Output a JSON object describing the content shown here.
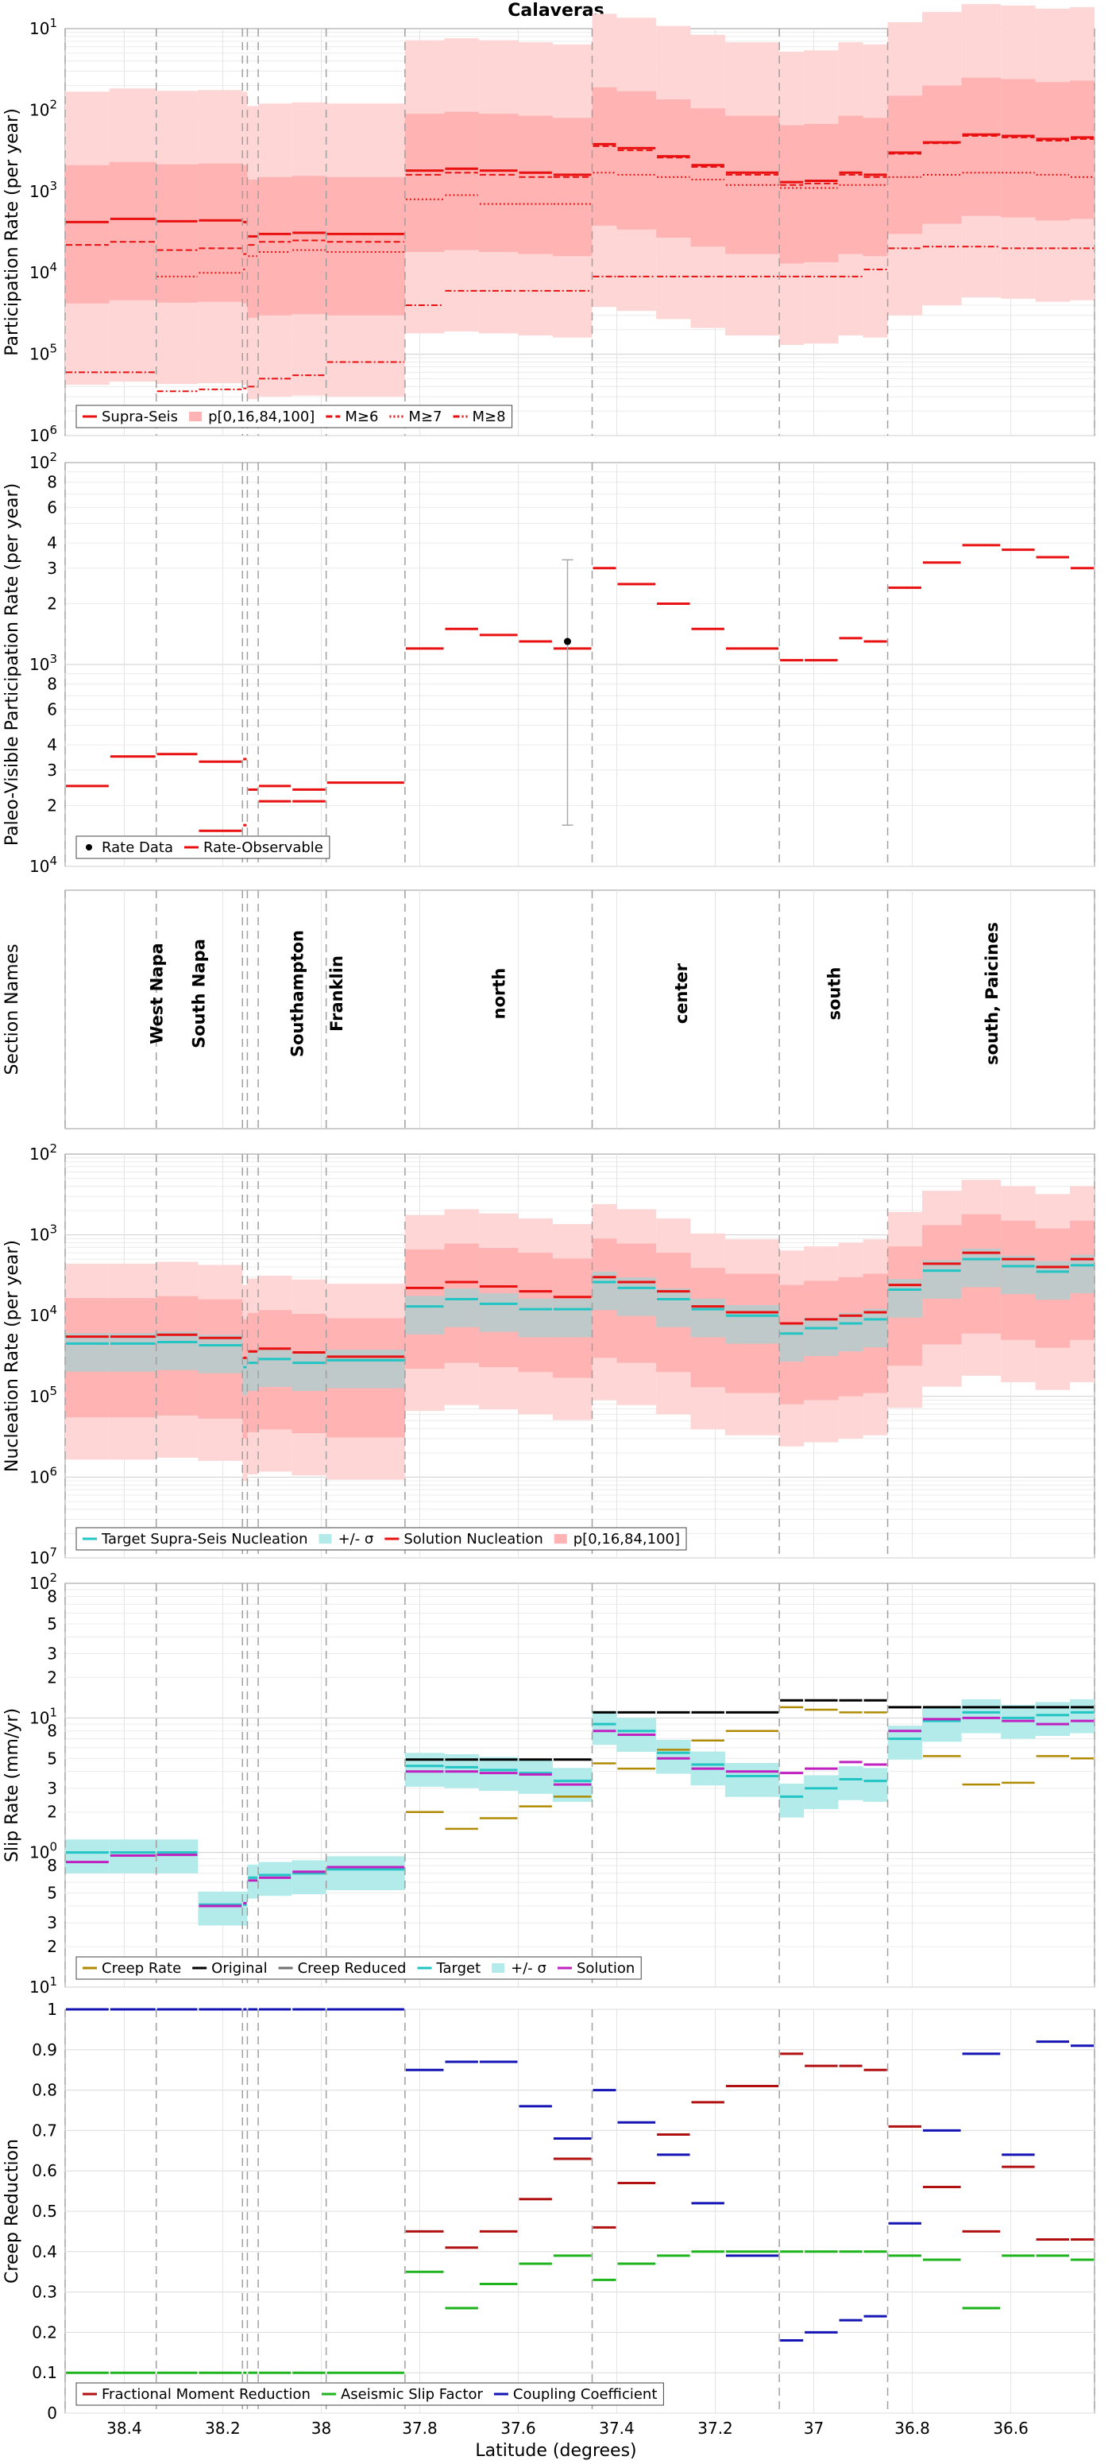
{
  "title": "Calaveras",
  "xlabel": "Latitude (degrees)",
  "x_ticks": [
    "38.4",
    "38.2",
    "38",
    "37.8",
    "37.6",
    "37.4",
    "37.2",
    "37",
    "36.8",
    "36.6"
  ],
  "section_boundaries_lat": [
    38.52,
    38.335,
    38.16,
    38.15,
    38.128,
    37.99,
    37.83,
    37.45,
    37.07,
    36.85,
    36.43
  ],
  "colors": {
    "red": "#e81010",
    "pink_light": "#ffd6d6",
    "pink_mid": "#ffb3b3",
    "pink_dark": "#ff8c8c",
    "cyan": "#22c4c4",
    "cyan_fill": "#b3eaea",
    "black": "#000000",
    "gray": "#707070",
    "creep": "#b08a00",
    "magenta": "#c020c0",
    "darkred": "#b01010",
    "green": "#1eb41e",
    "blue": "#1414b4"
  },
  "panels": [
    {
      "id": "participation",
      "ylabel": "Participation Rate (per year)",
      "yticks": [
        "10^1",
        "10^2",
        "10^3",
        "10^4",
        "10^5",
        "10^6"
      ],
      "legend": [
        "Supra-Seis",
        "p[0,16,84,100]",
        "M≥6",
        "M≥7",
        "M≥8"
      ]
    },
    {
      "id": "paleo",
      "ylabel": "Paleo-Visible Participation Rate (per year)",
      "yticks": [
        "10^2",
        "8",
        "6",
        "4",
        "3",
        "2",
        "10^3",
        "8",
        "6",
        "4",
        "3",
        "2",
        "10^4"
      ],
      "legend": [
        "Rate Data",
        "Rate-Observable"
      ]
    },
    {
      "id": "sections",
      "ylabel": "Section Names",
      "section_names": [
        "West Napa",
        "South Napa",
        "Southampton",
        "Franklin",
        "north",
        "center",
        "south",
        "south, Paicines"
      ]
    },
    {
      "id": "nucleation",
      "ylabel": "Nucleation Rate (per year)",
      "yticks": [
        "10^2",
        "10^3",
        "10^4",
        "10^5",
        "10^6",
        "10^7"
      ],
      "legend": [
        "Target Supra-Seis Nucleation",
        "+/- σ",
        "Solution Nucleation",
        "p[0,16,84,100]"
      ]
    },
    {
      "id": "slip",
      "ylabel": "Slip Rate (mm/yr)",
      "yticks": [
        "10^2",
        "8",
        "5",
        "3",
        "2",
        "10^1",
        "8",
        "5",
        "3",
        "2",
        "10^0",
        "8",
        "5",
        "3",
        "2",
        "10^1"
      ],
      "legend": [
        "Creep Rate",
        "Original",
        "Creep Reduced",
        "Target",
        "+/- σ",
        "Solution"
      ]
    },
    {
      "id": "creep",
      "ylabel": "Creep Reduction",
      "yticks": [
        "1",
        "0.9",
        "0.8",
        "0.7",
        "0.6",
        "0.5",
        "0.4",
        "0.3",
        "0.2",
        "0.1",
        "0"
      ],
      "legend": [
        "Fractional Moment Reduction",
        "Aseismic Slip Factor",
        "Coupling Coefficient"
      ]
    }
  ],
  "chart_data": [
    {
      "type": "step-segments",
      "panel": "participation",
      "ylim_log10": [
        -6,
        -1
      ],
      "segments_lat": [
        [
          38.52,
          38.43
        ],
        [
          38.43,
          38.335
        ],
        [
          38.335,
          38.25
        ],
        [
          38.25,
          38.16
        ],
        [
          38.16,
          38.15
        ],
        [
          38.15,
          38.128
        ],
        [
          38.128,
          38.06
        ],
        [
          38.06,
          37.99
        ],
        [
          37.99,
          37.83
        ],
        [
          37.83,
          37.75
        ],
        [
          37.75,
          37.68
        ],
        [
          37.68,
          37.6
        ],
        [
          37.6,
          37.53
        ],
        [
          37.53,
          37.45
        ],
        [
          37.45,
          37.4
        ],
        [
          37.4,
          37.32
        ],
        [
          37.32,
          37.25
        ],
        [
          37.25,
          37.18
        ],
        [
          37.18,
          37.07
        ],
        [
          37.07,
          37.02
        ],
        [
          37.02,
          36.95
        ],
        [
          36.95,
          36.9
        ],
        [
          36.9,
          36.85
        ],
        [
          36.85,
          36.78
        ],
        [
          36.78,
          36.7
        ],
        [
          36.7,
          36.62
        ],
        [
          36.62,
          36.55
        ],
        [
          36.55,
          36.48
        ],
        [
          36.48,
          36.43
        ]
      ],
      "series": [
        {
          "name": "Supra-Seis",
          "values": [
            0.00042,
            0.00046,
            0.00043,
            0.00044,
            0.00042,
            0.00028,
            0.0003,
            0.00031,
            0.0003,
            0.0018,
            0.0019,
            0.0018,
            0.0017,
            0.0016,
            0.0038,
            0.0034,
            0.0027,
            0.0021,
            0.0017,
            0.0013,
            0.00135,
            0.0017,
            0.0016,
            0.003,
            0.004,
            0.005,
            0.0048,
            0.0044,
            0.0046
          ]
        },
        {
          "name": "M≥6",
          "values": [
            0.00022,
            0.00024,
            0.00019,
            0.0002,
            0.00017,
            0.00022,
            0.00024,
            0.00025,
            0.00024,
            0.0016,
            0.0017,
            0.0016,
            0.0015,
            0.0015,
            0.0036,
            0.0032,
            0.0026,
            0.002,
            0.0016,
            0.0012,
            0.00125,
            0.0016,
            0.0015,
            0.0029,
            0.0039,
            0.0048,
            0.0046,
            0.0042,
            0.0044
          ]
        },
        {
          "name": "M≥7",
          "values": [
            null,
            null,
            9e-05,
            0.0001,
            0.00011,
            0.00016,
            0.00018,
            0.00019,
            0.00018,
            0.0008,
            0.0009,
            0.0007,
            0.0007,
            0.0007,
            0.0017,
            0.0016,
            0.0015,
            0.0014,
            0.0012,
            0.0011,
            0.0011,
            0.0012,
            0.0012,
            0.0015,
            0.0016,
            0.0017,
            0.0017,
            0.0016,
            0.0015
          ]
        },
        {
          "name": "M≥8",
          "values": [
            6e-06,
            6e-06,
            3.5e-06,
            3.7e-06,
            3.8e-06,
            4e-06,
            5e-06,
            5.5e-06,
            8e-06,
            4e-05,
            6e-05,
            6e-05,
            6e-05,
            6e-05,
            9e-05,
            9e-05,
            9e-05,
            9e-05,
            9e-05,
            9e-05,
            9e-05,
            9e-05,
            0.00011,
            0.0002,
            0.00021,
            0.00021,
            0.0002,
            0.0002,
            0.0002
          ]
        }
      ]
    },
    {
      "type": "step-segments",
      "panel": "paleo",
      "ylim_log10": [
        -4,
        -2
      ],
      "series": [
        {
          "name": "Rate-Observable",
          "values": [
            0.00025,
            0.00035,
            0.00036,
            0.00033,
            0.00034,
            0.00024,
            0.00025,
            0.00024,
            0.00026,
            0.0012,
            0.0015,
            0.0014,
            0.0013,
            0.0012,
            0.003,
            0.0025,
            0.002,
            0.0015,
            0.0012,
            0.00105,
            0.00105,
            0.00135,
            0.0013,
            0.0024,
            0.0032,
            0.0039,
            0.0037,
            0.0034,
            0.003
          ]
        },
        {
          "name": "Rate-Observable-lower",
          "values": [
            null,
            null,
            null,
            0.00015,
            0.00016,
            null,
            0.00021,
            0.00021,
            null
          ]
        }
      ],
      "points": [
        {
          "name": "Rate Data",
          "lat": 37.5,
          "value": 0.0013,
          "err_low": 0.00016,
          "err_high": 0.0033
        }
      ]
    },
    {
      "type": "step-segments",
      "panel": "nucleation",
      "ylim_log10": [
        -7,
        -2
      ],
      "series": [
        {
          "name": "Solution Nucleation",
          "values": [
            5.5e-05,
            5.5e-05,
            5.8e-05,
            5.3e-05,
            3e-05,
            3.6e-05,
            3.9e-05,
            3.5e-05,
            3.1e-05,
            0.00022,
            0.00026,
            0.00023,
            0.0002,
            0.00017,
            0.0003,
            0.00026,
            0.0002,
            0.00013,
            0.00011,
            8e-05,
            9e-05,
            0.0001,
            0.00011,
            0.00024,
            0.00044,
            0.0006,
            0.0005,
            0.0004,
            0.0005
          ]
        },
        {
          "name": "Target Supra-Seis Nucleation",
          "values": [
            4.5e-05,
            4.5e-05,
            4.7e-05,
            4.3e-05,
            2.3e-05,
            2.6e-05,
            2.9e-05,
            2.6e-05,
            2.8e-05,
            0.00013,
            0.00016,
            0.00014,
            0.00012,
            0.00012,
            0.00026,
            0.00022,
            0.00016,
            0.00012,
            0.0001,
            6e-05,
            7e-05,
            8e-05,
            9e-05,
            0.00021,
            0.00036,
            0.0005,
            0.00041,
            0.00035,
            0.00042
          ]
        }
      ]
    },
    {
      "type": "step-segments",
      "panel": "slip",
      "ylim_log10": [
        -1,
        2
      ],
      "series": [
        {
          "name": "Original",
          "values": [
            null,
            null,
            null,
            null,
            null,
            null,
            null,
            null,
            null,
            4.9,
            4.9,
            4.9,
            4.9,
            4.9,
            11.0,
            11.0,
            11.0,
            11.0,
            11.0,
            13.5,
            13.5,
            13.5,
            13.5,
            12.0,
            12.0,
            12.0,
            12.0,
            12.0,
            12.0
          ]
        },
        {
          "name": "Target",
          "values": [
            1.0,
            1.0,
            1.0,
            0.41,
            0.41,
            0.65,
            0.68,
            0.7,
            0.75,
            4.4,
            4.3,
            4.1,
            3.9,
            3.4,
            9.0,
            8.0,
            5.5,
            4.5,
            3.7,
            2.6,
            3.0,
            3.5,
            3.4,
            7.0,
            9.5,
            11.0,
            10.0,
            10.5,
            11.0
          ]
        },
        {
          "name": "Solution",
          "values": [
            0.85,
            0.95,
            0.96,
            0.4,
            0.42,
            0.62,
            0.65,
            0.72,
            0.78,
            4.0,
            4.0,
            3.9,
            3.8,
            3.2,
            8.0,
            7.5,
            5.0,
            4.2,
            4.0,
            3.9,
            4.2,
            4.7,
            4.5,
            8.0,
            9.8,
            10.0,
            9.5,
            9.0,
            9.5
          ]
        },
        {
          "name": "Creep Rate",
          "values": [
            null,
            null,
            null,
            null,
            null,
            null,
            null,
            null,
            null,
            2.0,
            1.5,
            1.8,
            2.2,
            2.6,
            4.6,
            4.2,
            5.8,
            6.8,
            8.0,
            12.0,
            11.5,
            11.0,
            11.0,
            8.0,
            5.2,
            3.2,
            3.3,
            5.2,
            5.0
          ]
        }
      ]
    },
    {
      "type": "step-segments",
      "panel": "creep",
      "ylim": [
        0,
        1
      ],
      "series": [
        {
          "name": "Fractional Moment Reduction",
          "values": [
            null,
            null,
            null,
            null,
            null,
            null,
            null,
            null,
            null,
            0.45,
            0.41,
            0.45,
            0.53,
            0.63,
            0.46,
            0.57,
            0.69,
            0.77,
            0.81,
            0.89,
            0.86,
            0.86,
            0.85,
            0.71,
            0.56,
            0.45,
            0.61,
            0.43,
            0.43
          ]
        },
        {
          "name": "Aseismic Slip Factor",
          "values": [
            0.1,
            0.1,
            0.1,
            0.1,
            0.1,
            0.1,
            0.1,
            0.1,
            0.1,
            0.35,
            0.26,
            0.32,
            0.37,
            0.39,
            0.33,
            0.37,
            0.39,
            0.4,
            0.4,
            0.4,
            0.4,
            0.4,
            0.4,
            0.39,
            0.38,
            0.26,
            0.39,
            0.39,
            0.38
          ]
        },
        {
          "name": "Coupling Coefficient",
          "values": [
            1,
            1,
            1,
            1,
            1,
            1,
            1,
            1,
            1,
            0.85,
            0.87,
            0.87,
            0.76,
            0.68,
            0.8,
            0.72,
            0.64,
            0.52,
            0.39,
            0.18,
            0.2,
            0.23,
            0.24,
            0.47,
            0.7,
            0.89,
            0.64,
            0.92,
            0.91
          ]
        }
      ]
    }
  ]
}
